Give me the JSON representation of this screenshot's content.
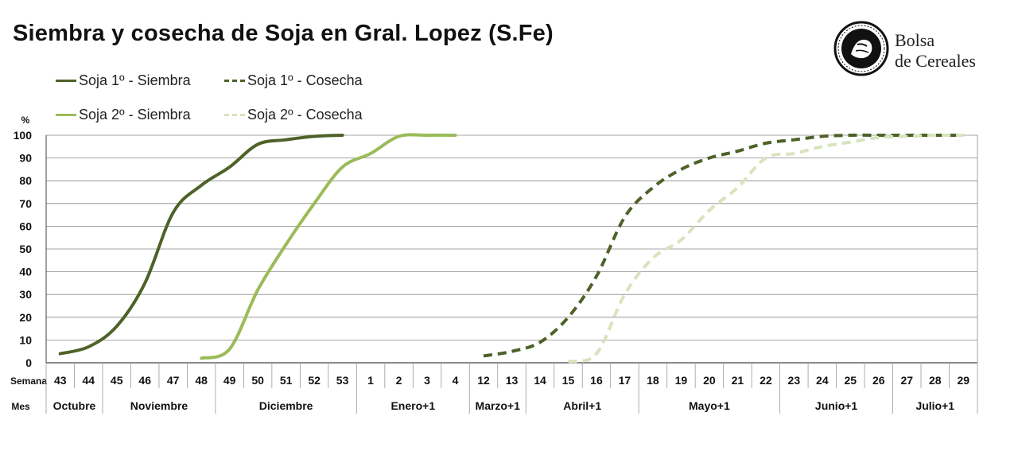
{
  "title": "Siembra y cosecha de Soja en Gral. Lopez (S.Fe)",
  "logo": {
    "line1": "Bolsa",
    "line2": "de Cereales"
  },
  "chart_data": {
    "type": "line",
    "title": "Siembra y cosecha de Soja en Gral. Lopez (S.Fe)",
    "ylabel": "%",
    "ylim": [
      0,
      100
    ],
    "yticks": [
      0,
      10,
      20,
      30,
      40,
      50,
      60,
      70,
      80,
      90,
      100
    ],
    "grid": true,
    "legend_position": "top-left",
    "row_labels": {
      "weeks": "Semana",
      "months": "Mes"
    },
    "weeks": [
      "43",
      "44",
      "45",
      "46",
      "47",
      "48",
      "49",
      "50",
      "51",
      "52",
      "53",
      "1",
      "2",
      "3",
      "4",
      "12",
      "13",
      "14",
      "15",
      "16",
      "17",
      "18",
      "19",
      "20",
      "21",
      "22",
      "23",
      "24",
      "25",
      "26",
      "27",
      "28",
      "29"
    ],
    "months": [
      {
        "label": "Octubre",
        "span": 2
      },
      {
        "label": "Noviembre",
        "span": 4
      },
      {
        "label": "Diciembre",
        "span": 5
      },
      {
        "label": "Enero+1",
        "span": 4
      },
      {
        "label": "Marzo+1",
        "span": 2
      },
      {
        "label": "Abril+1",
        "span": 4
      },
      {
        "label": "Mayo+1",
        "span": 5
      },
      {
        "label": "Junio+1",
        "span": 4
      },
      {
        "label": "Julio+1",
        "span": 3
      }
    ],
    "series": [
      {
        "name": "Soja 1º - Siembra",
        "color": "#4e6228",
        "dashed": false,
        "points": [
          [
            0,
            4
          ],
          [
            1,
            7
          ],
          [
            2,
            16
          ],
          [
            3,
            35
          ],
          [
            4,
            66
          ],
          [
            5,
            78
          ],
          [
            6,
            86
          ],
          [
            7,
            96
          ],
          [
            8,
            98
          ],
          [
            9,
            99.5
          ],
          [
            10,
            100
          ]
        ]
      },
      {
        "name": "Soja 1º - Cosecha",
        "color": "#4e6228",
        "dashed": true,
        "points": [
          [
            15,
            3
          ],
          [
            16,
            5
          ],
          [
            17,
            9
          ],
          [
            18,
            20
          ],
          [
            19,
            38
          ],
          [
            20,
            64
          ],
          [
            21,
            77
          ],
          [
            22,
            85
          ],
          [
            23,
            90
          ],
          [
            24,
            93
          ],
          [
            25,
            96.5
          ],
          [
            26,
            98
          ],
          [
            27,
            99.5
          ],
          [
            28,
            100
          ],
          [
            29,
            100
          ],
          [
            30,
            100
          ],
          [
            31,
            100
          ],
          [
            32,
            100
          ]
        ]
      },
      {
        "name": "Soja 2º - Siembra",
        "color": "#9bbb59",
        "dashed": false,
        "points": [
          [
            5,
            2
          ],
          [
            6,
            6
          ],
          [
            7,
            32
          ],
          [
            8,
            52
          ],
          [
            9,
            70
          ],
          [
            10,
            86
          ],
          [
            11,
            92
          ],
          [
            12,
            99.5
          ],
          [
            13,
            100
          ],
          [
            14,
            100
          ]
        ]
      },
      {
        "name": "Soja 2º - Cosecha",
        "color": "#d7e4bd",
        "dashed": true,
        "points": [
          [
            18,
            0.5
          ],
          [
            19,
            4
          ],
          [
            20,
            30
          ],
          [
            21,
            46
          ],
          [
            22,
            54
          ],
          [
            23,
            67
          ],
          [
            24,
            77
          ],
          [
            25,
            90
          ],
          [
            26,
            92
          ],
          [
            27,
            95
          ],
          [
            28,
            97
          ],
          [
            29,
            99
          ],
          [
            30,
            99.5
          ],
          [
            31,
            100
          ],
          [
            32,
            100
          ]
        ]
      }
    ]
  }
}
